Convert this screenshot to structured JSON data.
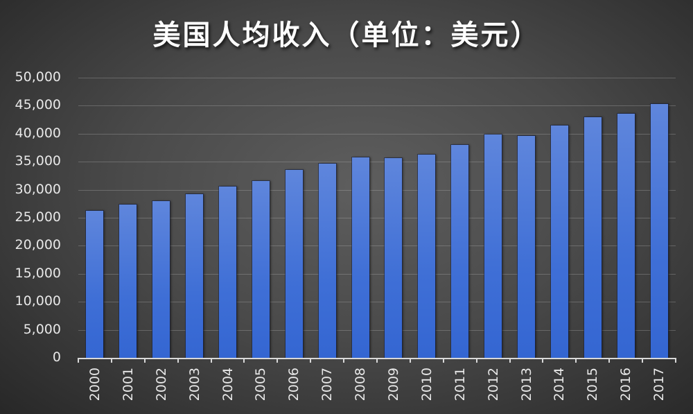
{
  "header": {
    "title": "美国人均收入（单位：美元）"
  },
  "colors": {
    "bar": "#3f6fd6",
    "background_center": "#5e5e5e",
    "background_edge": "#262626",
    "text": "#e8e8e8"
  },
  "y_axis": {
    "ticks": [
      "0",
      "5,000",
      "10,000",
      "15,000",
      "20,000",
      "25,000",
      "30,000",
      "35,000",
      "40,000",
      "45,000",
      "50,000"
    ]
  },
  "x_axis": {
    "ticks": [
      "2000",
      "2001",
      "2002",
      "2003",
      "2004",
      "2005",
      "2006",
      "2007",
      "2008",
      "2009",
      "2010",
      "2011",
      "2012",
      "2013",
      "2014",
      "2015",
      "2016",
      "2017"
    ]
  },
  "chart_data": {
    "type": "bar",
    "title": "美国人均收入（单位：美元）",
    "xlabel": "",
    "ylabel": "",
    "categories": [
      "2000",
      "2001",
      "2002",
      "2003",
      "2004",
      "2005",
      "2006",
      "2007",
      "2008",
      "2009",
      "2010",
      "2011",
      "2012",
      "2013",
      "2014",
      "2015",
      "2016",
      "2017"
    ],
    "values": [
      26200,
      27300,
      28000,
      29200,
      30600,
      31600,
      33500,
      34700,
      35800,
      35600,
      36300,
      38000,
      39800,
      39600,
      41400,
      42900,
      43600,
      45300
    ],
    "ylim": [
      0,
      50000
    ],
    "ytick_step": 5000,
    "grid": true,
    "legend": "none"
  }
}
